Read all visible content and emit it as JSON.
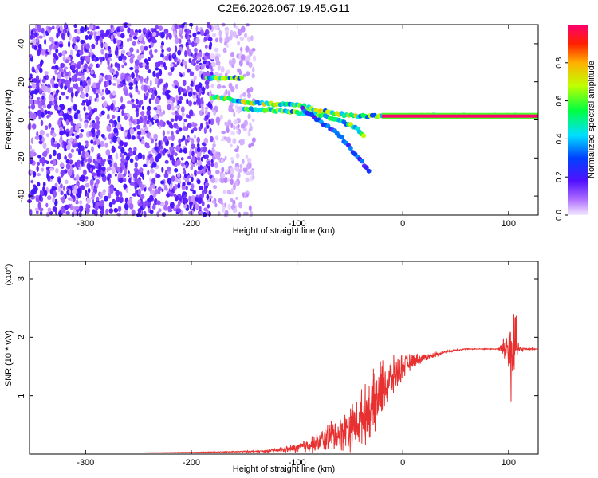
{
  "chart_data": [
    {
      "type": "heatmap",
      "title": "C2E6.2026.067.19.45.G11",
      "xlabel": "Height of straight line (km)",
      "ylabel": "Frequency (Hz)",
      "xlim": [
        -353,
        128
      ],
      "ylim": [
        -50,
        50
      ],
      "xticks": [
        -300,
        -200,
        -100,
        0,
        100
      ],
      "xtick_labels": [
        "-300",
        "-200",
        "-100",
        "0",
        "100"
      ],
      "yticks": [
        -40,
        -20,
        0,
        20,
        40
      ],
      "ytick_labels": [
        "-40",
        "-20",
        "0",
        "20",
        "40"
      ],
      "colorbar": {
        "label": "Normalized spectral amplitude",
        "range": [
          0,
          1
        ],
        "ticks": [
          0.0,
          0.2,
          0.4,
          0.6,
          0.8
        ],
        "tick_labels": [
          "0.0",
          "0.2",
          "0.4",
          "0.6",
          "0.8"
        ],
        "colormap": "rainbow"
      },
      "features": [
        {
          "name": "noise",
          "x_range": [
            -353,
            -180
          ],
          "freq_range": [
            -50,
            50
          ],
          "amplitude": 0.15
        },
        {
          "name": "sparse-noise",
          "x_range": [
            -180,
            -140
          ],
          "freq_range": [
            -50,
            50
          ],
          "amplitude": 0.05
        },
        {
          "name": "track-upper",
          "points": [
            [
              -185,
              22
            ],
            [
              -170,
              22
            ],
            [
              -150,
              22
            ]
          ],
          "amplitude": 0.55
        },
        {
          "name": "track-main",
          "points": [
            [
              -180,
              12
            ],
            [
              -140,
              9
            ],
            [
              -120,
              8
            ],
            [
              -100,
              8
            ],
            [
              -80,
              5
            ],
            [
              -60,
              3
            ],
            [
              -40,
              2
            ],
            [
              -20,
              2
            ],
            [
              0,
              2
            ],
            [
              80,
              2
            ],
            [
              100,
              2
            ],
            [
              128,
              2
            ]
          ],
          "amplitude": 0.6
        },
        {
          "name": "track-branch",
          "points": [
            [
              -150,
              6
            ],
            [
              -120,
              5
            ],
            [
              -100,
              4
            ],
            [
              -80,
              3
            ],
            [
              -60,
              0
            ],
            [
              -45,
              -4
            ],
            [
              -35,
              -10
            ]
          ],
          "amplitude": 0.55
        },
        {
          "name": "track-lower",
          "points": [
            [
              -95,
              6
            ],
            [
              -75,
              -2
            ],
            [
              -60,
              -8
            ],
            [
              -45,
              -18
            ],
            [
              -30,
              -28
            ]
          ],
          "amplitude": 0.3
        },
        {
          "name": "continuous-tone",
          "x_range": [
            -20,
            128
          ],
          "freq": 2,
          "amplitude": 1.0
        }
      ]
    },
    {
      "type": "line",
      "xlabel": "Height of straight line (km)",
      "ylabel": "SNR (10 * v/v)",
      "multiplier_label": "(x10",
      "multiplier_exponent": "4",
      "multiplier_close": ")",
      "xlim": [
        -353,
        128
      ],
      "ylim": [
        0,
        3.3
      ],
      "xticks": [
        -300,
        -200,
        -100,
        0,
        100
      ],
      "xtick_labels": [
        "-300",
        "-200",
        "-100",
        "0",
        "100"
      ],
      "yticks": [
        1,
        2,
        3
      ],
      "ytick_labels": [
        "1",
        "2",
        "3"
      ],
      "line_color": "#e83030",
      "series": [
        {
          "x": [
            -353,
            -300,
            -250,
            -200,
            -160,
            -130,
            -110,
            -100,
            -90,
            -80,
            -70,
            -60,
            -50,
            -40,
            -30,
            -25,
            -20,
            -15,
            -10,
            0,
            10,
            20,
            30,
            40,
            50,
            60,
            70,
            80,
            90,
            95,
            100,
            103,
            106,
            110,
            115,
            128
          ],
          "y": [
            0.02,
            0.02,
            0.02,
            0.03,
            0.04,
            0.05,
            0.08,
            0.1,
            0.15,
            0.2,
            0.3,
            0.35,
            0.45,
            0.6,
            0.8,
            0.9,
            1.1,
            1.2,
            1.3,
            1.5,
            1.6,
            1.65,
            1.7,
            1.75,
            1.78,
            1.8,
            1.8,
            1.8,
            1.8,
            1.8,
            1.85,
            1.6,
            1.9,
            1.78,
            1.8,
            1.8
          ],
          "noise": [
            0,
            0,
            0,
            0.005,
            0.01,
            0.02,
            0.06,
            0.1,
            0.15,
            0.2,
            0.3,
            0.35,
            0.45,
            0.55,
            0.6,
            0.7,
            0.6,
            0.5,
            0.4,
            0.25,
            0.15,
            0.08,
            0.05,
            0.03,
            0.02,
            0.01,
            0.01,
            0.01,
            0.01,
            0.2,
            0.6,
            1.3,
            0.7,
            0.1,
            0.02,
            0.01
          ]
        }
      ]
    }
  ]
}
